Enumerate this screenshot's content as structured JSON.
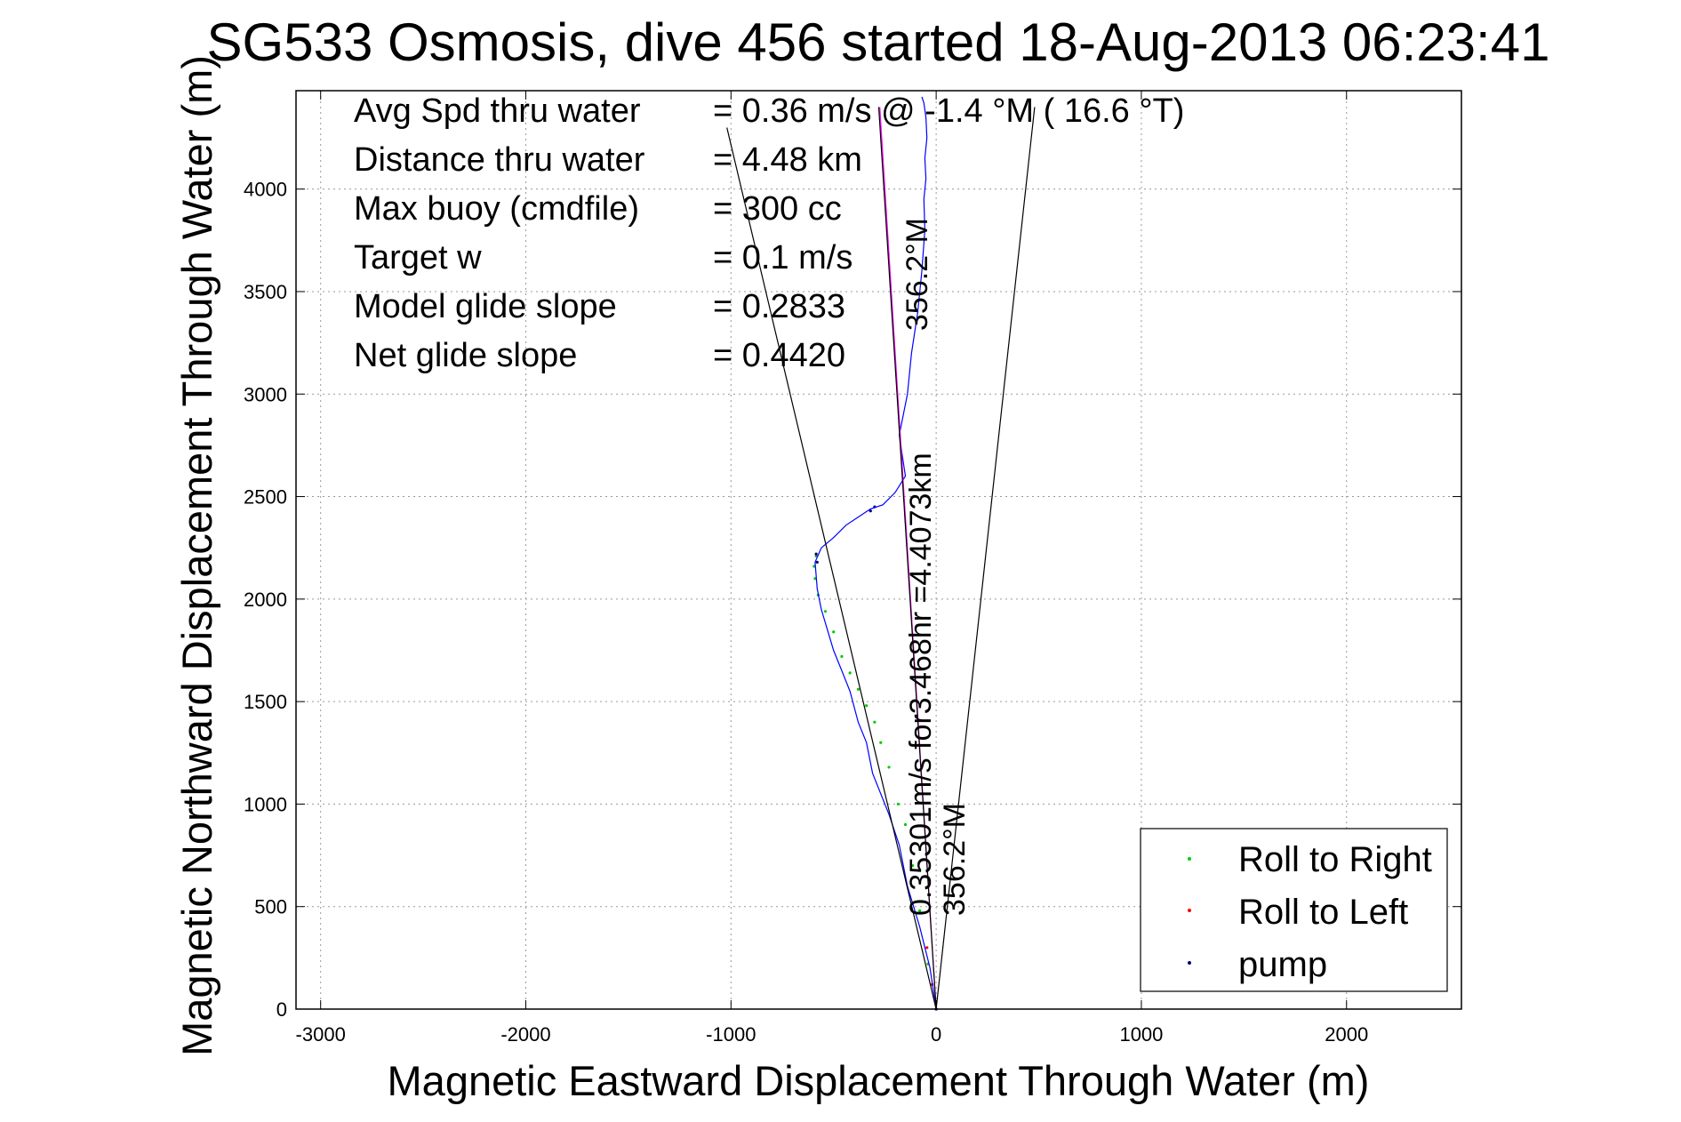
{
  "chart_data": {
    "type": "line",
    "title": "SG533 Osmosis, dive 456 started 18-Aug-2013 06:23:41",
    "xlabel": "Magnetic Eastward Displacement Through Water (m)",
    "ylabel": "Magnetic Northward Displacement Through Water (m)",
    "xlim": [
      -3120,
      2560
    ],
    "ylim": [
      0,
      4480
    ],
    "xticks": [
      -3000,
      -2000,
      -1000,
      0,
      1000,
      2000
    ],
    "xtick_labels": [
      "-3000",
      "-2000",
      "-1000",
      "0",
      "1000",
      "2000"
    ],
    "yticks": [
      0,
      500,
      1000,
      1500,
      2000,
      2500,
      3000,
      3500,
      4000
    ],
    "ytick_labels": [
      "0",
      "500",
      "1000",
      "1500",
      "2000",
      "2500",
      "3000",
      "3500",
      "4000"
    ],
    "grid": true,
    "legend_position": "bottom-right",
    "info_lines": [
      {
        "label": "Avg Spd thru water",
        "value": "=  0.36 m/s @  -1.4 °M ( 16.6 °T)"
      },
      {
        "label": "Distance thru water",
        "value": "=  4.48 km"
      },
      {
        "label": "Max buoy (cmdfile)",
        "value": "= 300 cc"
      },
      {
        "label": "Target w",
        "value": "= 0.1 m/s"
      },
      {
        "label": "Model glide slope",
        "value": "= 0.2833"
      },
      {
        "label": "Net glide slope",
        "value": "= 0.4420"
      }
    ],
    "annotations": {
      "speed_label": "0.35301m/s for3.468hr =4.4073km",
      "heading_label_upper": "356.2°M",
      "heading_label_lower": "356.2°M"
    },
    "series": [
      {
        "name": "Roll to Right",
        "color": "#00cc00",
        "marker": "dot",
        "x": [
          0,
          -40,
          -80,
          -115,
          -150,
          -185,
          -230,
          -270,
          -300,
          -340,
          -380,
          -420,
          -460,
          -500,
          -540,
          -575,
          -590,
          -595,
          -585
        ],
        "y": [
          0,
          220,
          480,
          700,
          900,
          1000,
          1180,
          1300,
          1400,
          1480,
          1560,
          1640,
          1720,
          1840,
          1940,
          2020,
          2100,
          2160,
          2210
        ]
      },
      {
        "name": "Roll to Left",
        "color": "#ff0000",
        "marker": "dot",
        "x": [
          0,
          -20,
          -45
        ],
        "y": [
          0,
          120,
          300
        ]
      },
      {
        "name": "pump",
        "color": "#000080",
        "marker": "dot",
        "x": [
          0,
          -320,
          -300,
          -580,
          -585
        ],
        "y": [
          0,
          2430,
          2450,
          2180,
          2220
        ]
      },
      {
        "name": "track",
        "color": "#0000ff",
        "x": [
          0,
          -30,
          -80,
          -140,
          -180,
          -230,
          -270,
          -310,
          -340,
          -380,
          -420,
          -460,
          -500,
          -530,
          -560,
          -580,
          -590,
          -560,
          -500,
          -440,
          -380,
          -320,
          -260,
          -200,
          -150,
          -180,
          -140,
          -120,
          -90,
          -70,
          -55,
          -60,
          -50,
          -55,
          -45,
          -50,
          -60,
          -70
        ],
        "y": [
          0,
          200,
          400,
          600,
          800,
          950,
          1050,
          1150,
          1300,
          1400,
          1550,
          1650,
          1750,
          1850,
          1950,
          2050,
          2180,
          2250,
          2300,
          2360,
          2400,
          2440,
          2460,
          2520,
          2600,
          2800,
          3000,
          3200,
          3400,
          3600,
          3800,
          3950,
          4050,
          4150,
          4250,
          4350,
          4420,
          4450
        ]
      },
      {
        "name": "model",
        "color": "#ff00ff",
        "x": [
          0,
          -275
        ],
        "y": [
          0,
          4400
        ]
      },
      {
        "name": "heading-cone-left",
        "color": "#000000",
        "x": [
          0,
          -1020
        ],
        "y": [
          0,
          4300
        ]
      },
      {
        "name": "heading-cone-right",
        "color": "#000000",
        "x": [
          0,
          480
        ],
        "y": [
          0,
          4400
        ]
      },
      {
        "name": "heading-inner",
        "color": "#000000",
        "x": [
          0,
          -280
        ],
        "y": [
          0,
          4400
        ]
      }
    ],
    "legend": [
      "Roll to Right",
      "Roll to Left",
      "pump"
    ]
  }
}
